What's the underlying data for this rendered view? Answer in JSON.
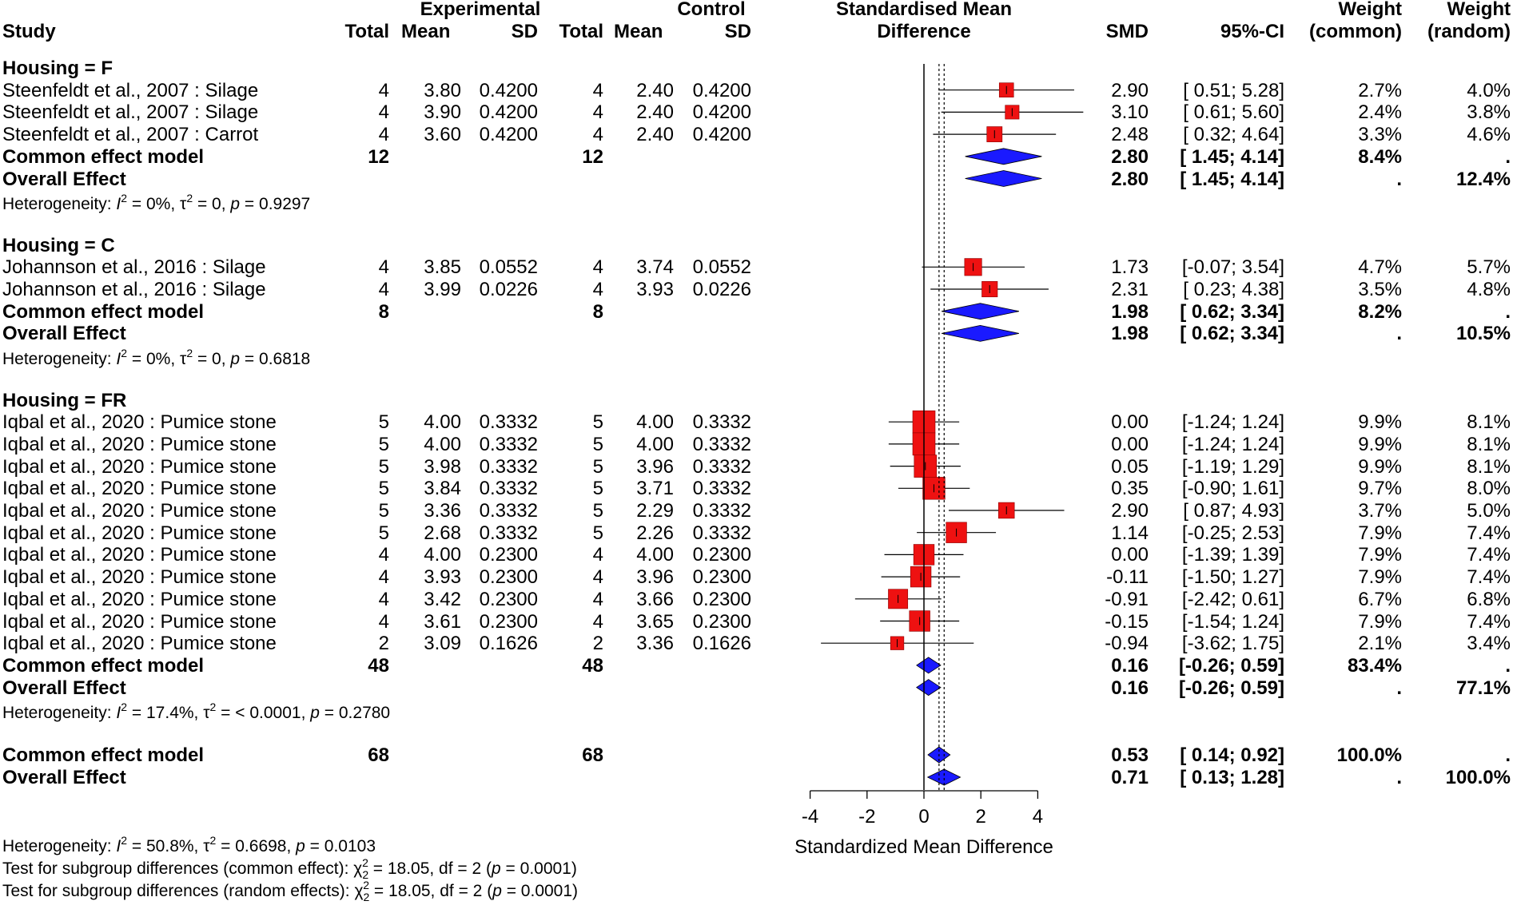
{
  "header": {
    "study": "Study",
    "experimental": "Experimental",
    "control": "Control",
    "total": "Total",
    "mean": "Mean",
    "sd": "SD",
    "smd_title_1": "Standardised Mean",
    "smd_title_2": "Difference",
    "smd": "SMD",
    "ci": "95%-CI",
    "weight": "Weight",
    "weight_common": "(common)",
    "weight_random": "(random)"
  },
  "groups": [
    {
      "label": "Housing = F",
      "studies": [
        {
          "study": "Steenfeldt et al., 2007 : Silage",
          "e_total": "4",
          "e_mean": "3.80",
          "e_sd": "0.4200",
          "c_total": "4",
          "c_mean": "2.40",
          "c_sd": "0.4200",
          "smd": "2.90",
          "ci": "[ 0.51; 5.28]",
          "w_common": "2.7%",
          "w_random": "4.0%"
        },
        {
          "study": "Steenfeldt et al., 2007 : Silage",
          "e_total": "4",
          "e_mean": "3.90",
          "e_sd": "0.4200",
          "c_total": "4",
          "c_mean": "2.40",
          "c_sd": "0.4200",
          "smd": "3.10",
          "ci": "[ 0.61; 5.60]",
          "w_common": "2.4%",
          "w_random": "3.8%"
        },
        {
          "study": "Steenfeldt et al., 2007 : Carrot",
          "e_total": "4",
          "e_mean": "3.60",
          "e_sd": "0.4200",
          "c_total": "4",
          "c_mean": "2.40",
          "c_sd": "0.4200",
          "smd": "2.48",
          "ci": "[ 0.32; 4.64]",
          "w_common": "3.3%",
          "w_random": "4.6%"
        }
      ],
      "common": {
        "label": "Common effect model",
        "e_total": "12",
        "c_total": "12",
        "smd": "2.80",
        "ci": "[ 1.45; 4.14]",
        "w_common": "8.4%",
        "w_random": "."
      },
      "overall": {
        "label": "Overall Effect",
        "smd": "2.80",
        "ci": "[ 1.45; 4.14]",
        "w_common": ".",
        "w_random": "12.4%"
      },
      "het": {
        "prefix": "Heterogeneity: ",
        "i2_sym": "I",
        "i2": " = 0%, ",
        "tau_sym": "τ",
        "tau": " = 0, ",
        "p_sym": "p",
        "p": " = 0.9297"
      }
    },
    {
      "label": "Housing = C",
      "studies": [
        {
          "study": "Johannson et al., 2016 : Silage",
          "e_total": "4",
          "e_mean": "3.85",
          "e_sd": "0.0552",
          "c_total": "4",
          "c_mean": "3.74",
          "c_sd": "0.0552",
          "smd": "1.73",
          "ci": "[-0.07; 3.54]",
          "w_common": "4.7%",
          "w_random": "5.7%"
        },
        {
          "study": "Johannson et al., 2016 : Silage",
          "e_total": "4",
          "e_mean": "3.99",
          "e_sd": "0.0226",
          "c_total": "4",
          "c_mean": "3.93",
          "c_sd": "0.0226",
          "smd": "2.31",
          "ci": "[ 0.23; 4.38]",
          "w_common": "3.5%",
          "w_random": "4.8%"
        }
      ],
      "common": {
        "label": "Common effect model",
        "e_total": "8",
        "c_total": "8",
        "smd": "1.98",
        "ci": "[ 0.62; 3.34]",
        "w_common": "8.2%",
        "w_random": "."
      },
      "overall": {
        "label": "Overall Effect",
        "smd": "1.98",
        "ci": "[ 0.62; 3.34]",
        "w_common": ".",
        "w_random": "10.5%"
      },
      "het": {
        "prefix": "Heterogeneity: ",
        "i2_sym": "I",
        "i2": " = 0%, ",
        "tau_sym": "τ",
        "tau": " = 0, ",
        "p_sym": "p",
        "p": " = 0.6818"
      }
    },
    {
      "label": "Housing = FR",
      "studies": [
        {
          "study": "Iqbal et al., 2020 : Pumice stone",
          "e_total": "5",
          "e_mean": "4.00",
          "e_sd": "0.3332",
          "c_total": "5",
          "c_mean": "4.00",
          "c_sd": "0.3332",
          "smd": "0.00",
          "ci": "[-1.24; 1.24]",
          "w_common": "9.9%",
          "w_random": "8.1%"
        },
        {
          "study": "Iqbal et al., 2020 : Pumice stone",
          "e_total": "5",
          "e_mean": "4.00",
          "e_sd": "0.3332",
          "c_total": "5",
          "c_mean": "4.00",
          "c_sd": "0.3332",
          "smd": "0.00",
          "ci": "[-1.24; 1.24]",
          "w_common": "9.9%",
          "w_random": "8.1%"
        },
        {
          "study": "Iqbal et al., 2020 : Pumice stone",
          "e_total": "5",
          "e_mean": "3.98",
          "e_sd": "0.3332",
          "c_total": "5",
          "c_mean": "3.96",
          "c_sd": "0.3332",
          "smd": "0.05",
          "ci": "[-1.19; 1.29]",
          "w_common": "9.9%",
          "w_random": "8.1%"
        },
        {
          "study": "Iqbal et al., 2020 : Pumice stone",
          "e_total": "5",
          "e_mean": "3.84",
          "e_sd": "0.3332",
          "c_total": "5",
          "c_mean": "3.71",
          "c_sd": "0.3332",
          "smd": "0.35",
          "ci": "[-0.90; 1.61]",
          "w_common": "9.7%",
          "w_random": "8.0%"
        },
        {
          "study": "Iqbal et al., 2020 : Pumice stone",
          "e_total": "5",
          "e_mean": "3.36",
          "e_sd": "0.3332",
          "c_total": "5",
          "c_mean": "2.29",
          "c_sd": "0.3332",
          "smd": "2.90",
          "ci": "[ 0.87; 4.93]",
          "w_common": "3.7%",
          "w_random": "5.0%"
        },
        {
          "study": "Iqbal et al., 2020 : Pumice stone",
          "e_total": "5",
          "e_mean": "2.68",
          "e_sd": "0.3332",
          "c_total": "5",
          "c_mean": "2.26",
          "c_sd": "0.3332",
          "smd": "1.14",
          "ci": "[-0.25; 2.53]",
          "w_common": "7.9%",
          "w_random": "7.4%"
        },
        {
          "study": "Iqbal et al., 2020 : Pumice stone",
          "e_total": "4",
          "e_mean": "4.00",
          "e_sd": "0.2300",
          "c_total": "4",
          "c_mean": "4.00",
          "c_sd": "0.2300",
          "smd": "0.00",
          "ci": "[-1.39; 1.39]",
          "w_common": "7.9%",
          "w_random": "7.4%"
        },
        {
          "study": "Iqbal et al., 2020 : Pumice stone",
          "e_total": "4",
          "e_mean": "3.93",
          "e_sd": "0.2300",
          "c_total": "4",
          "c_mean": "3.96",
          "c_sd": "0.2300",
          "smd": "-0.11",
          "ci": "[-1.50; 1.27]",
          "w_common": "7.9%",
          "w_random": "7.4%"
        },
        {
          "study": "Iqbal et al., 2020 : Pumice stone",
          "e_total": "4",
          "e_mean": "3.42",
          "e_sd": "0.2300",
          "c_total": "4",
          "c_mean": "3.66",
          "c_sd": "0.2300",
          "smd": "-0.91",
          "ci": "[-2.42; 0.61]",
          "w_common": "6.7%",
          "w_random": "6.8%"
        },
        {
          "study": "Iqbal et al., 2020 : Pumice stone",
          "e_total": "4",
          "e_mean": "3.61",
          "e_sd": "0.2300",
          "c_total": "4",
          "c_mean": "3.65",
          "c_sd": "0.2300",
          "smd": "-0.15",
          "ci": "[-1.54; 1.24]",
          "w_common": "7.9%",
          "w_random": "7.4%"
        },
        {
          "study": "Iqbal et al., 2020 : Pumice stone",
          "e_total": "2",
          "e_mean": "3.09",
          "e_sd": "0.1626",
          "c_total": "2",
          "c_mean": "3.36",
          "c_sd": "0.1626",
          "smd": "-0.94",
          "ci": "[-3.62; 1.75]",
          "w_common": "2.1%",
          "w_random": "3.4%"
        }
      ],
      "common": {
        "label": "Common effect model",
        "e_total": "48",
        "c_total": "48",
        "smd": "0.16",
        "ci": "[-0.26; 0.59]",
        "w_common": "83.4%",
        "w_random": "."
      },
      "overall": {
        "label": "Overall Effect",
        "smd": "0.16",
        "ci": "[-0.26; 0.59]",
        "w_common": ".",
        "w_random": "77.1%"
      },
      "het": {
        "prefix": "Heterogeneity: ",
        "i2_sym": "I",
        "i2": " = 17.4%, ",
        "tau_sym": "τ",
        "tau": " = < 0.0001, ",
        "p_sym": "p",
        "p": " = 0.2780"
      }
    }
  ],
  "total": {
    "common": {
      "label": "Common effect model",
      "e_total": "68",
      "c_total": "68",
      "smd": "0.53",
      "ci": "[ 0.14; 0.92]",
      "w_common": "100.0%",
      "w_random": "."
    },
    "overall": {
      "label": "Overall Effect",
      "smd": "0.71",
      "ci": "[ 0.13; 1.28]",
      "w_common": ".",
      "w_random": "100.0%"
    }
  },
  "footer": {
    "het": {
      "prefix": "Heterogeneity: ",
      "i2_sym": "I",
      "i2": " = 50.8%, ",
      "tau_sym": "τ",
      "tau": " = 0.6698, ",
      "p_sym": "p",
      "p": " = 0.0103"
    },
    "test_common": {
      "prefix": "Test for subgroup differences (common effect): ",
      "chi": "χ",
      "rest": " = 18.05, df = 2 (",
      "p_sym": "p",
      "p": " = 0.0001)"
    },
    "test_random": {
      "prefix": "Test for subgroup differences (random effects): ",
      "chi": "χ",
      "rest": " = 18.05, df = 2 (",
      "p_sym": "p",
      "p": " = 0.0001)"
    }
  },
  "chart_data": {
    "type": "forest",
    "xlabel": "Standardized Mean Difference",
    "xlim": [
      -4,
      4
    ],
    "xticks": [
      -4,
      -2,
      0,
      2,
      4
    ],
    "reference_line": 0,
    "common_line": 0.53,
    "random_line": 0.71,
    "colors": {
      "square": "#ee1111",
      "diamond": "#1a1aff",
      "line": "#000000"
    }
  }
}
